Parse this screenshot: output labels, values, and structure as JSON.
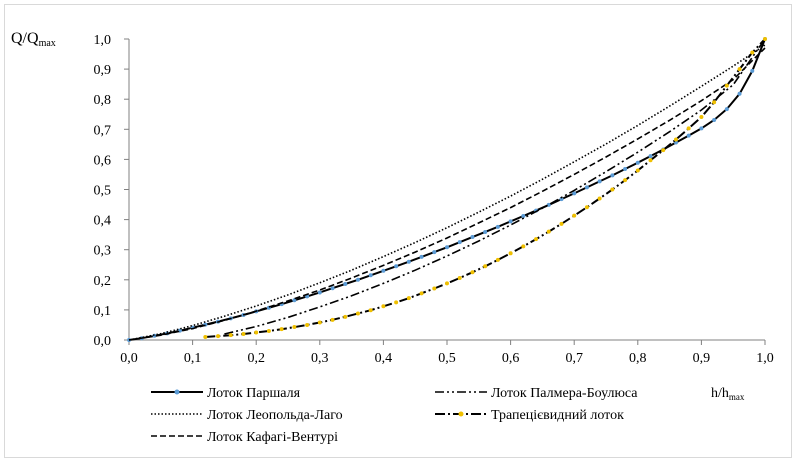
{
  "chart_data": {
    "type": "line",
    "title": "",
    "ylabel": {
      "main": "Q/Q",
      "sub": "max"
    },
    "xlabel": {
      "main": "h/h",
      "sub": "max"
    },
    "xlim": [
      0,
      1
    ],
    "ylim": [
      0,
      1
    ],
    "x_ticks": [
      "0,0",
      "0,1",
      "0,2",
      "0,3",
      "0,4",
      "0,5",
      "0,6",
      "0,7",
      "0,8",
      "0,9",
      "1,0"
    ],
    "y_ticks": [
      "0,0",
      "0,1",
      "0,2",
      "0,3",
      "0,4",
      "0,5",
      "0,6",
      "0,7",
      "0,8",
      "0,9",
      "1,0"
    ],
    "grid": "none",
    "legend_position": "bottom",
    "series": [
      {
        "name": "Лоток Паршаля",
        "style": "solid-markers",
        "color": "#000000",
        "marker_color": "#5b9bd5",
        "x": [
          0.0,
          0.02,
          0.04,
          0.06,
          0.08,
          0.1,
          0.12,
          0.14,
          0.16,
          0.18,
          0.2,
          0.22,
          0.24,
          0.26,
          0.28,
          0.3,
          0.32,
          0.34,
          0.36,
          0.38,
          0.4,
          0.42,
          0.44,
          0.46,
          0.48,
          0.5,
          0.52,
          0.54,
          0.56,
          0.58,
          0.6,
          0.62,
          0.64,
          0.66,
          0.68,
          0.7,
          0.72,
          0.74,
          0.76,
          0.78,
          0.8,
          0.82,
          0.84,
          0.86,
          0.88,
          0.9,
          0.92,
          0.94,
          0.96,
          0.98,
          1.0
        ],
        "y": [
          0.0,
          0.006,
          0.014,
          0.022,
          0.031,
          0.041,
          0.051,
          0.061,
          0.072,
          0.083,
          0.095,
          0.107,
          0.119,
          0.132,
          0.145,
          0.158,
          0.172,
          0.186,
          0.2,
          0.215,
          0.23,
          0.245,
          0.26,
          0.276,
          0.292,
          0.308,
          0.325,
          0.342,
          0.359,
          0.376,
          0.394,
          0.412,
          0.43,
          0.449,
          0.468,
          0.487,
          0.507,
          0.527,
          0.547,
          0.568,
          0.589,
          0.611,
          0.633,
          0.656,
          0.679,
          0.703,
          0.731,
          0.767,
          0.818,
          0.894,
          1.0
        ]
      },
      {
        "name": "Лоток Леопольда-Лаго",
        "style": "dotted",
        "color": "#000000",
        "x": [
          0.0,
          0.05,
          0.1,
          0.15,
          0.2,
          0.25,
          0.3,
          0.35,
          0.4,
          0.45,
          0.5,
          0.55,
          0.6,
          0.65,
          0.7,
          0.75,
          0.8,
          0.85,
          0.9,
          0.95,
          1.0
        ],
        "y": [
          0.0,
          0.021,
          0.048,
          0.079,
          0.113,
          0.15,
          0.19,
          0.232,
          0.277,
          0.324,
          0.373,
          0.425,
          0.478,
          0.534,
          0.592,
          0.651,
          0.713,
          0.777,
          0.843,
          0.91,
          0.98
        ]
      },
      {
        "name": "Лоток Кафагі-Вентурі",
        "style": "dashed",
        "color": "#000000",
        "x": [
          0.0,
          0.05,
          0.1,
          0.15,
          0.2,
          0.25,
          0.3,
          0.35,
          0.4,
          0.45,
          0.5,
          0.55,
          0.6,
          0.65,
          0.7,
          0.75,
          0.8,
          0.85,
          0.9,
          0.95,
          1.0
        ],
        "y": [
          0.0,
          0.016,
          0.038,
          0.065,
          0.096,
          0.13,
          0.166,
          0.206,
          0.248,
          0.292,
          0.339,
          0.389,
          0.44,
          0.494,
          0.55,
          0.608,
          0.668,
          0.73,
          0.795,
          0.865,
          0.97
        ]
      },
      {
        "name": "Лоток Палмера-Боулюса",
        "style": "dash-dot-dot",
        "color": "#000000",
        "x": [
          0.15,
          0.2,
          0.25,
          0.3,
          0.35,
          0.4,
          0.45,
          0.5,
          0.55,
          0.6,
          0.65,
          0.7,
          0.75,
          0.8,
          0.85,
          0.9,
          0.95,
          1.0
        ],
        "y": [
          0.02,
          0.045,
          0.075,
          0.11,
          0.147,
          0.188,
          0.232,
          0.279,
          0.329,
          0.382,
          0.438,
          0.497,
          0.559,
          0.624,
          0.692,
          0.764,
          0.848,
          1.0
        ]
      },
      {
        "name": "Трапецієвидний лоток",
        "style": "dash-dot-markers",
        "color": "#000000",
        "marker_color": "#f0c000",
        "x": [
          0.12,
          0.14,
          0.16,
          0.18,
          0.2,
          0.22,
          0.24,
          0.26,
          0.28,
          0.3,
          0.32,
          0.34,
          0.36,
          0.38,
          0.4,
          0.42,
          0.44,
          0.46,
          0.48,
          0.5,
          0.52,
          0.54,
          0.56,
          0.58,
          0.6,
          0.62,
          0.64,
          0.66,
          0.68,
          0.7,
          0.72,
          0.74,
          0.76,
          0.78,
          0.8,
          0.82,
          0.84,
          0.86,
          0.88,
          0.9,
          0.92,
          0.94,
          0.96,
          0.98,
          1.0
        ],
        "y": [
          0.01,
          0.013,
          0.016,
          0.02,
          0.025,
          0.03,
          0.036,
          0.043,
          0.05,
          0.058,
          0.067,
          0.077,
          0.088,
          0.099,
          0.112,
          0.125,
          0.139,
          0.155,
          0.171,
          0.188,
          0.206,
          0.225,
          0.245,
          0.266,
          0.288,
          0.311,
          0.335,
          0.36,
          0.386,
          0.413,
          0.441,
          0.47,
          0.5,
          0.531,
          0.563,
          0.597,
          0.631,
          0.666,
          0.703,
          0.741,
          0.79,
          0.845,
          0.9,
          0.955,
          1.0
        ]
      }
    ]
  }
}
